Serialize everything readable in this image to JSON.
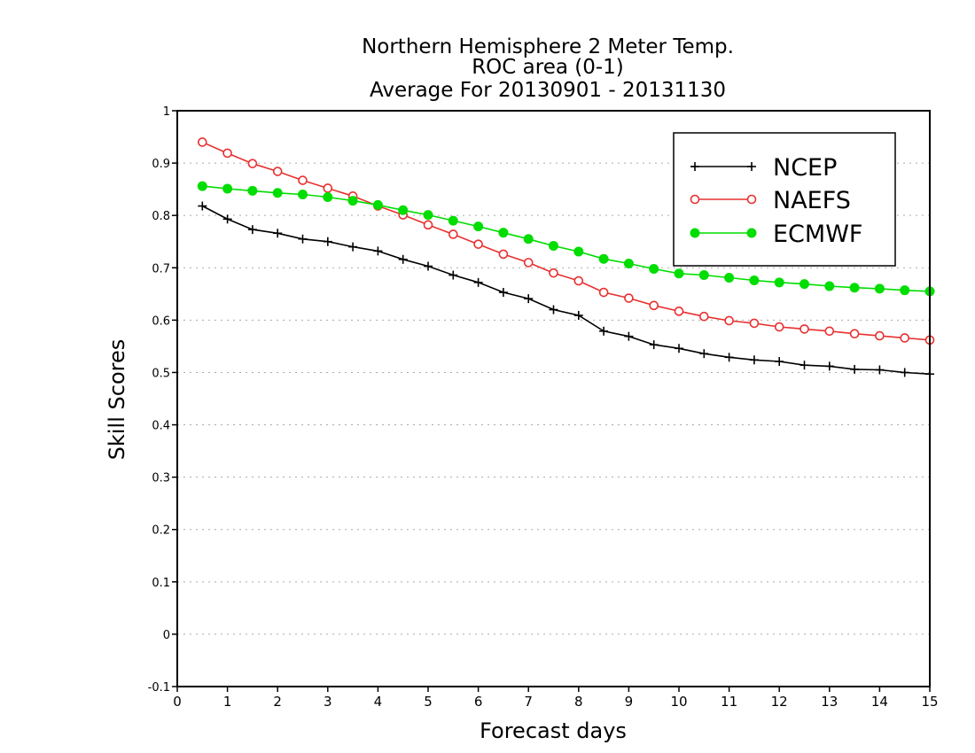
{
  "chart_data": {
    "type": "line",
    "title_lines": [
      "Northern Hemisphere 2 Meter Temp.",
      "ROC area (0-1)",
      "Average For 20130901 - 20131130"
    ],
    "xlabel": "Forecast days",
    "ylabel": "Skill Scores",
    "xlim": [
      0,
      15
    ],
    "ylim": [
      -0.1,
      1
    ],
    "x_ticks": [
      "0",
      "1",
      "2",
      "3",
      "4",
      "5",
      "6",
      "7",
      "8",
      "9",
      "10",
      "11",
      "12",
      "13",
      "14",
      "15"
    ],
    "y_ticks": [
      "-0.1",
      "0",
      "0.1",
      "0.2",
      "0.3",
      "0.4",
      "0.5",
      "0.6",
      "0.7",
      "0.8",
      "0.9",
      "1"
    ],
    "grid": "horizontal dotted",
    "legend_position": "top-right",
    "x": [
      0.5,
      1,
      1.5,
      2,
      2.5,
      3,
      3.5,
      4,
      4.5,
      5,
      5.5,
      6,
      6.5,
      7,
      7.5,
      8,
      8.5,
      9,
      9.5,
      10,
      10.5,
      11,
      11.5,
      12,
      12.5,
      13,
      13.5,
      14,
      14.5,
      15
    ],
    "series": [
      {
        "name": "NCEP",
        "color": "#000000",
        "marker": "plus",
        "values": [
          0.818,
          0.793,
          0.773,
          0.766,
          0.755,
          0.75,
          0.74,
          0.732,
          0.716,
          0.703,
          0.686,
          0.672,
          0.653,
          0.641,
          0.62,
          0.609,
          0.579,
          0.569,
          0.553,
          0.546,
          0.536,
          0.529,
          0.524,
          0.521,
          0.514,
          0.512,
          0.506,
          0.505,
          0.5,
          0.497
        ]
      },
      {
        "name": "NAEFS",
        "color": "#e83030",
        "marker": "open-circle",
        "values": [
          0.94,
          0.919,
          0.899,
          0.884,
          0.867,
          0.852,
          0.837,
          0.818,
          0.801,
          0.782,
          0.764,
          0.745,
          0.726,
          0.71,
          0.69,
          0.675,
          0.653,
          0.642,
          0.628,
          0.617,
          0.607,
          0.599,
          0.594,
          0.587,
          0.583,
          0.579,
          0.574,
          0.57,
          0.566,
          0.562
        ]
      },
      {
        "name": "ECMWF",
        "color": "#00dd00",
        "marker": "filled-circle",
        "values": [
          0.856,
          0.851,
          0.847,
          0.843,
          0.84,
          0.835,
          0.828,
          0.82,
          0.81,
          0.801,
          0.79,
          0.779,
          0.767,
          0.755,
          0.742,
          0.731,
          0.717,
          0.708,
          0.698,
          0.689,
          0.686,
          0.681,
          0.676,
          0.672,
          0.669,
          0.665,
          0.662,
          0.66,
          0.657,
          0.655
        ]
      }
    ]
  }
}
